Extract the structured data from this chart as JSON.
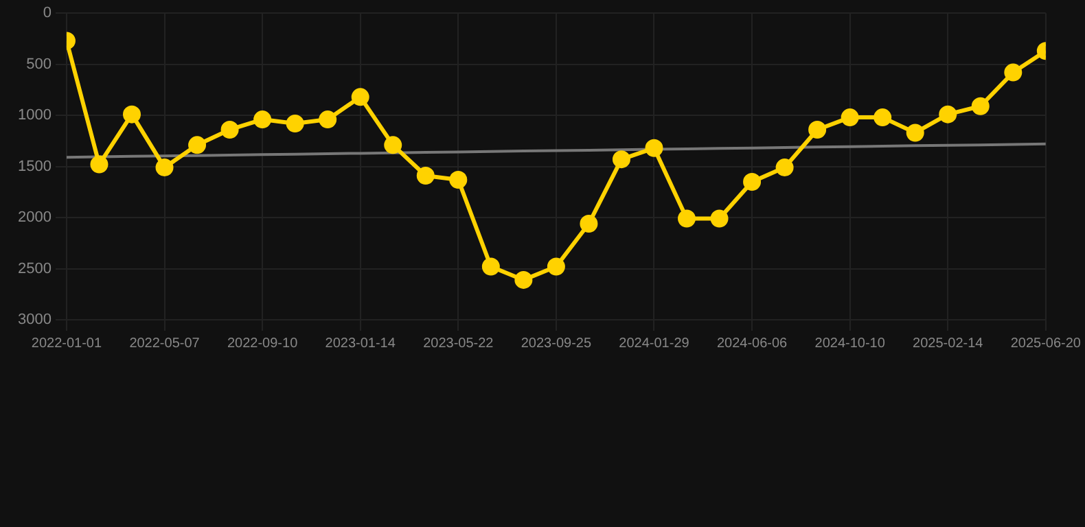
{
  "chart_data": {
    "type": "line",
    "categories": [
      "2022-01-01",
      null,
      null,
      "2022-05-07",
      null,
      null,
      "2022-09-10",
      null,
      null,
      "2023-01-14",
      null,
      null,
      "2023-05-22",
      null,
      null,
      "2023-09-25",
      null,
      null,
      "2024-01-29",
      null,
      null,
      "2024-06-06",
      null,
      null,
      "2024-10-10",
      null,
      null,
      "2025-02-14",
      null,
      null,
      "2025-06-20"
    ],
    "series": [
      {
        "color": "#ffd200",
        "values": [
          270,
          1480,
          990,
          1510,
          1290,
          1140,
          1040,
          1080,
          1040,
          820,
          1290,
          1590,
          1630,
          2480,
          2610,
          2480,
          2060,
          1430,
          1320,
          2010,
          2010,
          1650,
          1510,
          1140,
          1020,
          1020,
          1170,
          990,
          910,
          580,
          370
        ]
      },
      {
        "type": "line",
        "color": "#777777",
        "marker": "none",
        "values": [
          1410,
          1406,
          1401,
          1397,
          1393,
          1388,
          1384,
          1380,
          1375,
          1371,
          1367,
          1362,
          1358,
          1354,
          1349,
          1345,
          1341,
          1336,
          1332,
          1328,
          1323,
          1319,
          1315,
          1310,
          1306,
          1302,
          1297,
          1293,
          1289,
          1284,
          1280
        ]
      }
    ],
    "ylim": [
      3000,
      0
    ],
    "yticks": [
      0,
      500,
      1000,
      1500,
      2000,
      2500,
      3000
    ],
    "grid": true,
    "marker": "circle",
    "line_style": "solid"
  }
}
